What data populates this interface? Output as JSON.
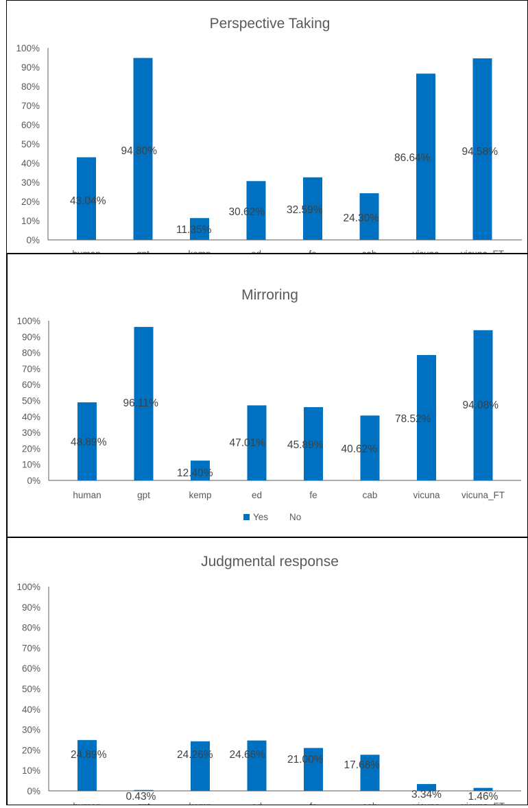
{
  "colors": {
    "bar": "#0070c0",
    "axis": "#595959",
    "text": "#595959",
    "label": "#404040"
  },
  "chart_data": [
    {
      "type": "bar",
      "title": "Perspective Taking",
      "categories": [
        "human",
        "gpt",
        "kemp",
        "ed",
        "fe",
        "cab",
        "vicuna",
        "vicuna_FT"
      ],
      "series": [
        {
          "name": "Yes",
          "values": [
            43.04,
            94.8,
            11.35,
            30.62,
            32.59,
            24.3,
            86.64,
            94.58
          ],
          "labels": [
            "43.04%",
            "94.80%",
            "11.35%",
            "30.62%",
            "32.59%",
            "24.30%",
            "86.64%",
            "94.58%"
          ]
        }
      ],
      "yticks": [
        "0%",
        "10%",
        "20%",
        "30%",
        "40%",
        "50%",
        "60%",
        "70%",
        "80%",
        "90%",
        "100%"
      ],
      "ylim": [
        0,
        100
      ],
      "grid": false
    },
    {
      "type": "bar",
      "title": "Mirroring",
      "categories": [
        "human",
        "gpt",
        "kemp",
        "ed",
        "fe",
        "cab",
        "vicuna",
        "vicuna_FT"
      ],
      "series": [
        {
          "name": "Yes",
          "values": [
            48.89,
            96.11,
            12.4,
            47.01,
            45.89,
            40.62,
            78.52,
            94.08
          ],
          "labels": [
            "48.89%",
            "96.11%",
            "12.40%",
            "47.01%",
            "45.89%",
            "40.62%",
            "78.52%",
            "94.08%"
          ]
        }
      ],
      "yticks": [
        "0%",
        "10%",
        "20%",
        "30%",
        "40%",
        "50%",
        "60%",
        "70%",
        "80%",
        "90%",
        "100%"
      ],
      "ylim": [
        0,
        100
      ],
      "grid": false,
      "legend": {
        "position": "bottom",
        "items": [
          "Yes",
          "No"
        ]
      }
    },
    {
      "type": "bar",
      "title": "Judgmental response",
      "categories": [
        "human",
        "gpt",
        "kemp",
        "ed",
        "fe",
        "cab",
        "vicuna",
        "vicuna_FT"
      ],
      "series": [
        {
          "name": "Yes",
          "values": [
            24.89,
            0.43,
            24.26,
            24.66,
            21.0,
            17.68,
            3.34,
            1.46
          ],
          "labels": [
            "24.89%",
            "0.43%",
            "24.26%",
            "24.66%",
            "21.00%",
            "17.68%",
            "3.34%",
            "1.46%"
          ]
        }
      ],
      "yticks": [
        "0%",
        "10%",
        "20%",
        "30%",
        "40%",
        "50%",
        "60%",
        "70%",
        "80%",
        "90%",
        "100%"
      ],
      "ylim": [
        0,
        100
      ],
      "grid": false
    }
  ]
}
